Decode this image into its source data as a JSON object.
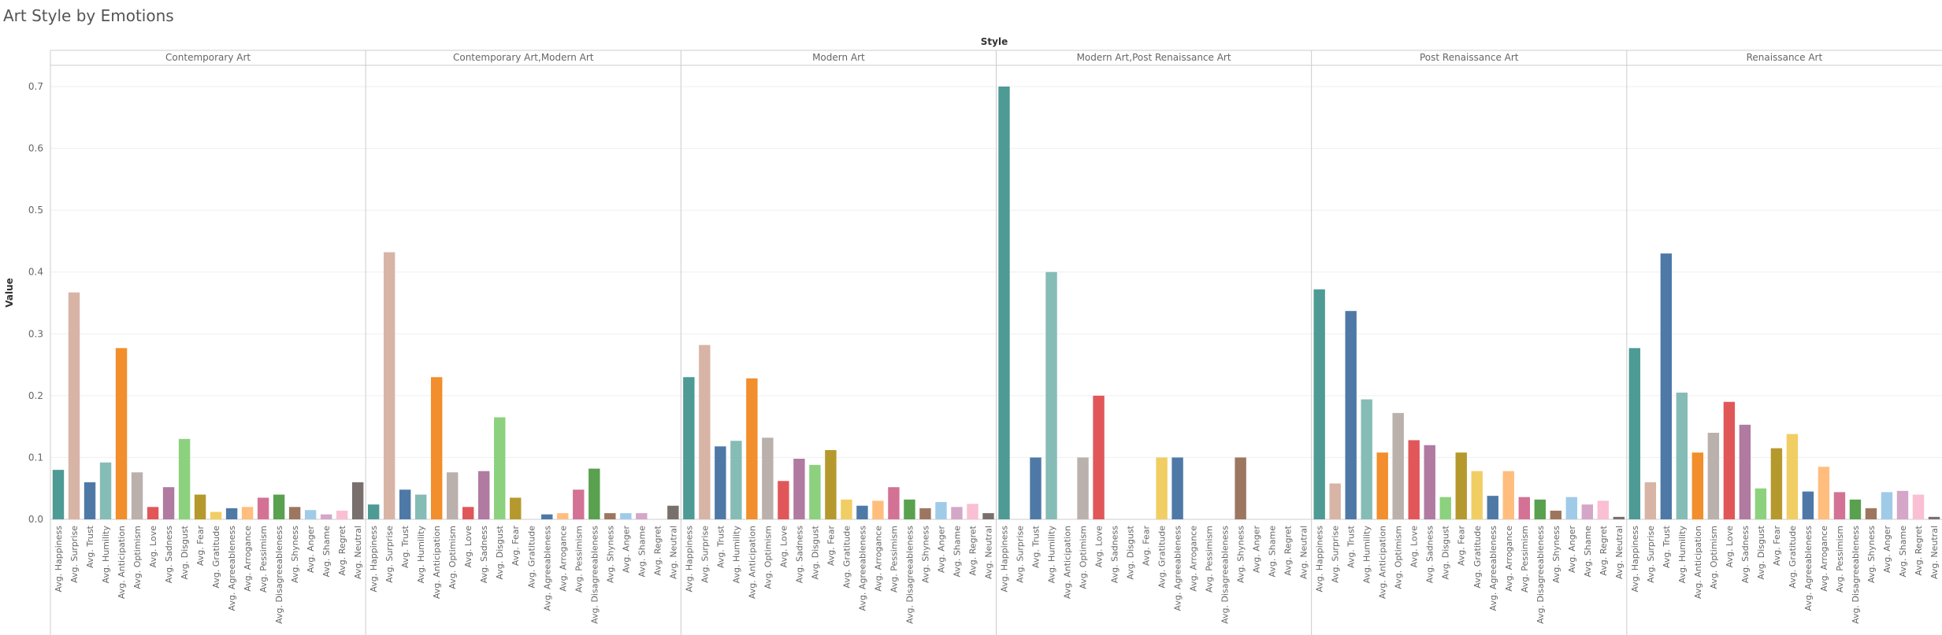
{
  "chart_data": {
    "type": "bar",
    "title": "Art Style by Emotions",
    "column_header": "Style",
    "ylabel": "Value",
    "ylim": [
      0,
      0.7
    ],
    "yticks": [
      0.0,
      0.1,
      0.2,
      0.3,
      0.4,
      0.5,
      0.6,
      0.7
    ],
    "grid": true,
    "categories": [
      "Avg. Happiness",
      "Avg. Surprise",
      "Avg. Trust",
      "Avg. Humility",
      "Avg. Anticipation",
      "Avg. Optimism",
      "Avg. Love",
      "Avg. Sadness",
      "Avg. Disgust",
      "Avg. Fear",
      "Avg. Gratitude",
      "Avg. Agreeableness",
      "Avg. Arrogance",
      "Avg. Pessimism",
      "Avg. Disagreeableness",
      "Avg. Shyness",
      "Avg. Anger",
      "Avg. Shame",
      "Avg. Regret",
      "Avg. Neutral"
    ],
    "colors": [
      "#4e9a95",
      "#d8b4a6",
      "#4e79a7",
      "#86bcb6",
      "#f28e2b",
      "#bab0ac",
      "#e15759",
      "#b07aa1",
      "#8cd17d",
      "#b6992d",
      "#f1ce63",
      "#4e79a7",
      "#ffbe7d",
      "#d37295",
      "#59a14f",
      "#9d7660",
      "#a0cbe8",
      "#d4a6c8",
      "#fabfd2",
      "#79706e"
    ],
    "panels": [
      {
        "name": "Contemporary Art",
        "values": [
          0.08,
          0.367,
          0.06,
          0.092,
          0.277,
          0.076,
          0.02,
          0.052,
          0.13,
          0.04,
          0.012,
          0.018,
          0.02,
          0.035,
          0.04,
          0.02,
          0.015,
          0.008,
          0.014,
          0.06
        ]
      },
      {
        "name": "Contemporary Art,Modern Art",
        "values": [
          0.024,
          0.432,
          0.048,
          0.04,
          0.23,
          0.076,
          0.02,
          0.078,
          0.165,
          0.035,
          0.0,
          0.008,
          0.01,
          0.048,
          0.082,
          0.01,
          0.01,
          0.01,
          0.0,
          0.022
        ]
      },
      {
        "name": "Modern Art",
        "values": [
          0.23,
          0.282,
          0.118,
          0.127,
          0.228,
          0.132,
          0.062,
          0.098,
          0.088,
          0.112,
          0.032,
          0.022,
          0.03,
          0.052,
          0.032,
          0.018,
          0.028,
          0.02,
          0.025,
          0.01
        ]
      },
      {
        "name": "Modern Art,Post Renaissance Art",
        "values": [
          0.7,
          0.0,
          0.1,
          0.4,
          0.0,
          0.1,
          0.2,
          0.0,
          0.0,
          0.0,
          0.1,
          0.1,
          0.0,
          0.0,
          0.0,
          0.1,
          0.0,
          0.0,
          0.0,
          0.0
        ]
      },
      {
        "name": "Post Renaissance Art",
        "values": [
          0.372,
          0.058,
          0.337,
          0.194,
          0.108,
          0.172,
          0.128,
          0.12,
          0.036,
          0.108,
          0.078,
          0.038,
          0.078,
          0.036,
          0.032,
          0.014,
          0.036,
          0.024,
          0.03,
          0.004
        ]
      },
      {
        "name": "Renaissance Art",
        "values": [
          0.277,
          0.06,
          0.43,
          0.205,
          0.108,
          0.14,
          0.19,
          0.153,
          0.05,
          0.115,
          0.138,
          0.045,
          0.085,
          0.044,
          0.032,
          0.018,
          0.044,
          0.046,
          0.04,
          0.004
        ]
      }
    ]
  }
}
